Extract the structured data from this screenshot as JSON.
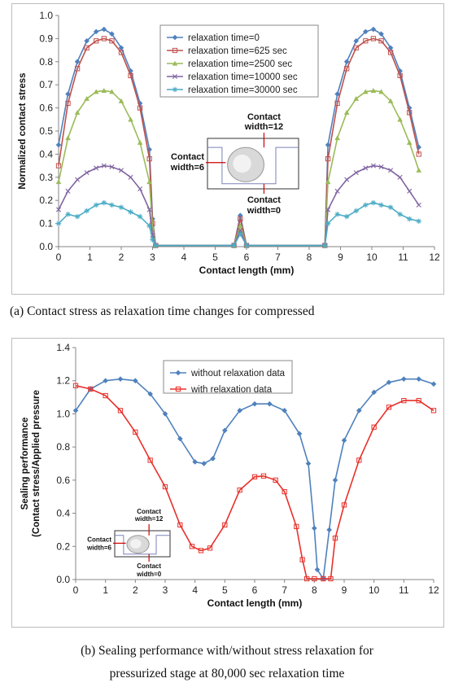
{
  "captions": {
    "a": "(a) Contact stress as relaxation time changes for compressed",
    "b_line1": "(b) Sealing performance with/without stress relaxation for",
    "b_line2": "pressurized stage at 80,000 sec relaxation time"
  },
  "chart_data": [
    {
      "type": "line",
      "xlabel": "Contact length (mm)",
      "ylabel": "Normalized contact stress",
      "xlim": [
        0,
        12
      ],
      "ylim": [
        0,
        1.0
      ],
      "xticks": [
        "0",
        "1",
        "2",
        "3",
        "4",
        "5",
        "6",
        "7",
        "8",
        "9",
        "10",
        "11",
        "12"
      ],
      "yticks": [
        "0.0",
        "0.1",
        "0.2",
        "0.3",
        "0.4",
        "0.5",
        "0.6",
        "0.7",
        "0.8",
        "0.9",
        "1.0"
      ],
      "grid": false,
      "legend_position": "top-center",
      "inset": {
        "labels": [
          "Contact width=12",
          "Contact width=6",
          "Contact width=0"
        ]
      },
      "series": [
        {
          "name": "relaxation time=0",
          "color": "#4f81bd",
          "marker": "diamond",
          "x": [
            0,
            0.3,
            0.6,
            0.9,
            1.2,
            1.45,
            1.7,
            2.0,
            2.3,
            2.6,
            2.9,
            3.0,
            3.1,
            5.6,
            5.8,
            6.0,
            8.5,
            8.6,
            8.9,
            9.2,
            9.5,
            9.8,
            10.05,
            10.3,
            10.6,
            10.9,
            11.2,
            11.5
          ],
          "y": [
            0.44,
            0.66,
            0.8,
            0.89,
            0.93,
            0.94,
            0.92,
            0.86,
            0.76,
            0.62,
            0.42,
            0.12,
            0.005,
            0.005,
            0.135,
            0.005,
            0.005,
            0.44,
            0.66,
            0.8,
            0.89,
            0.93,
            0.94,
            0.92,
            0.86,
            0.76,
            0.6,
            0.43
          ]
        },
        {
          "name": "relaxation time=625 sec",
          "color": "#c0504d",
          "marker": "square",
          "x": [
            0,
            0.3,
            0.6,
            0.9,
            1.2,
            1.45,
            1.7,
            2.0,
            2.3,
            2.6,
            2.9,
            3.0,
            3.1,
            5.6,
            5.8,
            6.0,
            8.5,
            8.6,
            8.9,
            9.2,
            9.5,
            9.8,
            10.05,
            10.3,
            10.6,
            10.9,
            11.2,
            11.5
          ],
          "y": [
            0.35,
            0.62,
            0.77,
            0.86,
            0.89,
            0.9,
            0.89,
            0.84,
            0.74,
            0.6,
            0.38,
            0.1,
            0.005,
            0.005,
            0.12,
            0.005,
            0.005,
            0.38,
            0.62,
            0.77,
            0.86,
            0.89,
            0.9,
            0.89,
            0.84,
            0.74,
            0.58,
            0.4
          ]
        },
        {
          "name": "relaxation time=2500 sec",
          "color": "#9bbb59",
          "marker": "triangle",
          "x": [
            0,
            0.3,
            0.6,
            0.9,
            1.2,
            1.45,
            1.7,
            2.0,
            2.3,
            2.6,
            2.9,
            3.0,
            3.1,
            5.6,
            5.8,
            6.0,
            8.5,
            8.6,
            8.9,
            9.2,
            9.5,
            9.8,
            10.05,
            10.3,
            10.6,
            10.9,
            11.2,
            11.5
          ],
          "y": [
            0.28,
            0.47,
            0.58,
            0.64,
            0.67,
            0.675,
            0.67,
            0.63,
            0.55,
            0.45,
            0.28,
            0.08,
            0.005,
            0.005,
            0.09,
            0.005,
            0.005,
            0.28,
            0.47,
            0.58,
            0.64,
            0.67,
            0.675,
            0.67,
            0.63,
            0.55,
            0.45,
            0.33
          ]
        },
        {
          "name": "relaxation time=10000 sec",
          "color": "#8064a2",
          "marker": "x",
          "x": [
            0,
            0.3,
            0.6,
            0.9,
            1.2,
            1.45,
            1.7,
            2.0,
            2.3,
            2.6,
            2.9,
            3.0,
            3.1,
            5.6,
            5.8,
            6.0,
            8.5,
            8.6,
            8.9,
            9.2,
            9.5,
            9.8,
            10.05,
            10.3,
            10.6,
            10.9,
            11.2,
            11.5
          ],
          "y": [
            0.16,
            0.24,
            0.29,
            0.32,
            0.34,
            0.35,
            0.345,
            0.33,
            0.3,
            0.25,
            0.16,
            0.05,
            0.005,
            0.005,
            0.07,
            0.005,
            0.005,
            0.16,
            0.24,
            0.29,
            0.32,
            0.34,
            0.35,
            0.345,
            0.33,
            0.3,
            0.24,
            0.18
          ]
        },
        {
          "name": "relaxation time=30000 sec",
          "color": "#4bacc6",
          "marker": "star",
          "x": [
            0,
            0.3,
            0.6,
            0.9,
            1.2,
            1.45,
            1.7,
            2.0,
            2.3,
            2.6,
            2.9,
            3.0,
            3.1,
            5.6,
            5.8,
            6.0,
            8.5,
            8.6,
            8.9,
            9.2,
            9.5,
            9.8,
            10.05,
            10.3,
            10.6,
            10.9,
            11.2,
            11.5
          ],
          "y": [
            0.1,
            0.14,
            0.13,
            0.155,
            0.18,
            0.19,
            0.18,
            0.17,
            0.15,
            0.13,
            0.09,
            0.03,
            0.005,
            0.005,
            0.055,
            0.005,
            0.005,
            0.1,
            0.14,
            0.13,
            0.155,
            0.18,
            0.19,
            0.18,
            0.17,
            0.14,
            0.12,
            0.11
          ]
        }
      ]
    },
    {
      "type": "line",
      "xlabel": "Contact length (mm)",
      "ylabel": "Sealing performance\n(Contact stress/Applied pressure",
      "xlim": [
        0,
        12
      ],
      "ylim": [
        0,
        1.4
      ],
      "xticks": [
        "0",
        "1",
        "2",
        "3",
        "4",
        "5",
        "6",
        "7",
        "8",
        "9",
        "10",
        "11",
        "12"
      ],
      "yticks": [
        "0.0",
        "0.2",
        "0.4",
        "0.6",
        "0.8",
        "1.0",
        "1.2",
        "1.4"
      ],
      "grid": false,
      "legend_position": "top-center",
      "inset": {
        "labels": [
          "Contact width=12",
          "Contact width=6",
          "Contact width=0"
        ]
      },
      "series": [
        {
          "name": "without relaxation data",
          "color": "#4f81bd",
          "marker": "diamond",
          "x": [
            0,
            0.5,
            1.0,
            1.5,
            2.0,
            2.5,
            3.0,
            3.5,
            4.0,
            4.3,
            4.6,
            5.0,
            5.5,
            6.0,
            6.5,
            7.0,
            7.5,
            7.8,
            8.0,
            8.1,
            8.3,
            8.5,
            8.7,
            9.0,
            9.5,
            10.0,
            10.5,
            11.0,
            11.5,
            12.0
          ],
          "y": [
            1.02,
            1.15,
            1.2,
            1.21,
            1.2,
            1.12,
            1.0,
            0.85,
            0.71,
            0.7,
            0.73,
            0.9,
            1.02,
            1.06,
            1.06,
            1.02,
            0.88,
            0.7,
            0.31,
            0.06,
            0.005,
            0.3,
            0.6,
            0.84,
            1.02,
            1.13,
            1.19,
            1.21,
            1.21,
            1.18
          ]
        },
        {
          "name": "with relaxation data",
          "color": "#e8302a",
          "marker": "square",
          "x": [
            0,
            0.5,
            1.0,
            1.5,
            2.0,
            2.5,
            3.0,
            3.5,
            3.9,
            4.2,
            4.5,
            5.0,
            5.5,
            6.0,
            6.3,
            6.7,
            7.0,
            7.4,
            7.6,
            7.75,
            8.0,
            8.3,
            8.55,
            8.7,
            9.0,
            9.5,
            10.0,
            10.5,
            11.0,
            11.5,
            12.0
          ],
          "y": [
            1.17,
            1.15,
            1.11,
            1.02,
            0.89,
            0.72,
            0.56,
            0.33,
            0.2,
            0.175,
            0.19,
            0.33,
            0.54,
            0.62,
            0.625,
            0.6,
            0.53,
            0.32,
            0.12,
            0.005,
            0.005,
            0.005,
            0.005,
            0.25,
            0.45,
            0.72,
            0.92,
            1.04,
            1.08,
            1.08,
            1.02
          ]
        }
      ]
    }
  ]
}
